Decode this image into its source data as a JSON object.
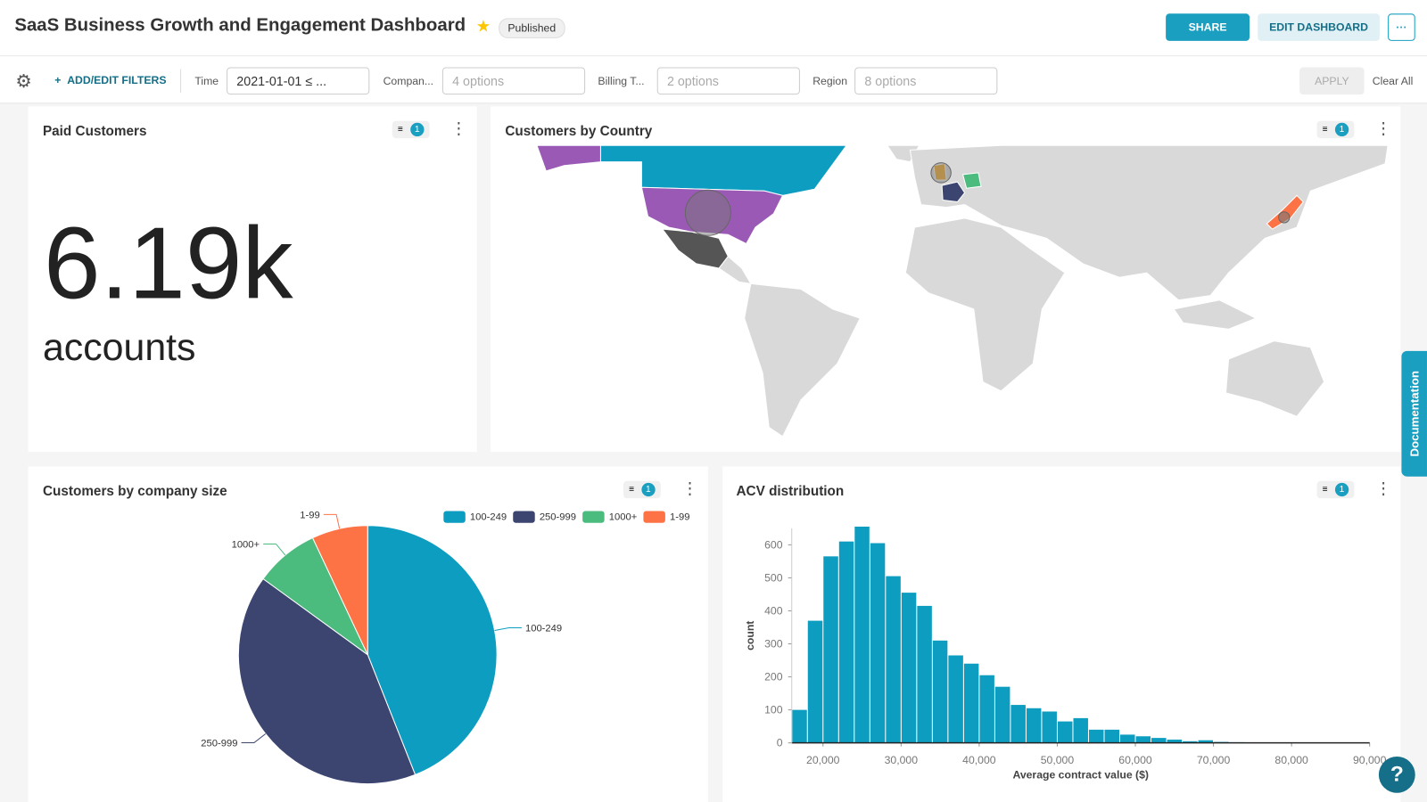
{
  "header": {
    "title": "SaaS Business Growth and Engagement Dashboard",
    "status": "Published",
    "share": "SHARE",
    "edit": "EDIT DASHBOARD",
    "more": "···"
  },
  "filters": {
    "add": "ADD/EDIT FILTERS",
    "time_label": "Time",
    "time_value": "2021-01-01 ≤ ...",
    "company_label": "Compan...",
    "company_value": "4 options",
    "billing_label": "Billing T...",
    "billing_value": "2 options",
    "region_label": "Region",
    "region_value": "8 options",
    "apply": "APPLY",
    "clear": "Clear All"
  },
  "kpi": {
    "title": "Paid Customers",
    "value": "6.19k",
    "unit": "accounts",
    "badge": "1"
  },
  "map": {
    "title": "Customers by Country",
    "badge": "1"
  },
  "side": {
    "documentation": "Documentation",
    "help": "?"
  },
  "chart_data": [
    {
      "type": "pie",
      "title": "Customers by company size",
      "badge": "1",
      "categories": [
        "100-249",
        "250-999",
        "1000+",
        "1-99"
      ],
      "values": [
        44,
        41,
        8,
        7
      ],
      "colors": [
        "#0d9dc0",
        "#3c4470",
        "#4cbb7e",
        "#fe7346"
      ]
    },
    {
      "type": "histogram",
      "title": "ACV distribution",
      "badge": "1",
      "x_label": "Average contract value ($)",
      "y_label": "count",
      "color": "#0d9dc0",
      "bins": [
        16000,
        18000,
        20000,
        22000,
        24000,
        26000,
        28000,
        30000,
        32000,
        34000,
        36000,
        38000,
        40000,
        42000,
        44000,
        46000,
        48000,
        50000,
        52000,
        54000,
        56000,
        58000,
        60000,
        62000,
        64000,
        66000,
        68000,
        70000,
        72000,
        74000
      ],
      "counts": [
        100,
        370,
        565,
        610,
        655,
        605,
        505,
        455,
        415,
        310,
        265,
        240,
        205,
        170,
        115,
        105,
        95,
        65,
        75,
        40,
        40,
        25,
        20,
        15,
        10,
        5,
        8,
        3,
        2
      ],
      "xlim": [
        16000,
        90000
      ],
      "xticks": [
        {
          "value": 20000,
          "label": "20,000"
        },
        {
          "value": 30000,
          "label": "30,000"
        },
        {
          "value": 40000,
          "label": "40,000"
        },
        {
          "value": 50000,
          "label": "50,000"
        },
        {
          "value": 60000,
          "label": "60,000"
        },
        {
          "value": 70000,
          "label": "70,000"
        },
        {
          "value": 80000,
          "label": "80,000"
        },
        {
          "value": 90000,
          "label": "90,000"
        }
      ],
      "ylim": [
        0,
        650
      ],
      "yticks": [
        0,
        100,
        200,
        300,
        400,
        500,
        600
      ]
    }
  ]
}
